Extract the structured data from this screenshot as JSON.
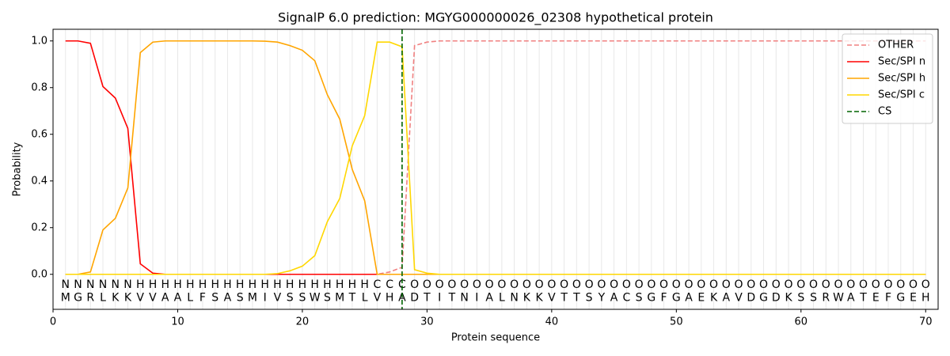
{
  "chart_data": {
    "type": "line",
    "title": "SignalP 6.0 prediction: MGYG000000026_02308 hypothetical protein",
    "xlabel": "Protein sequence",
    "ylabel": "Probability",
    "x": [
      1,
      2,
      3,
      4,
      5,
      6,
      7,
      8,
      9,
      10,
      11,
      12,
      13,
      14,
      15,
      16,
      17,
      18,
      19,
      20,
      21,
      22,
      23,
      24,
      25,
      26,
      27,
      28,
      29,
      30,
      31,
      32,
      33,
      34,
      35,
      36,
      37,
      38,
      39,
      40,
      41,
      42,
      43,
      44,
      45,
      46,
      47,
      48,
      49,
      50,
      51,
      52,
      53,
      54,
      55,
      56,
      57,
      58,
      59,
      60,
      61,
      62,
      63,
      64,
      65,
      66,
      67,
      68,
      69,
      70
    ],
    "sequence": [
      "M",
      "G",
      "R",
      "L",
      "K",
      "K",
      "V",
      "V",
      "A",
      "A",
      "L",
      "F",
      "S",
      "A",
      "S",
      "M",
      "I",
      "V",
      "S",
      "S",
      "W",
      "S",
      "M",
      "T",
      "L",
      "V",
      "H",
      "A",
      "D",
      "T",
      "I",
      "T",
      "N",
      "I",
      "A",
      "L",
      "N",
      "K",
      "K",
      "V",
      "T",
      "T",
      "S",
      "Y",
      "A",
      "C",
      "S",
      "G",
      "F",
      "G",
      "A",
      "E",
      "K",
      "A",
      "V",
      "D",
      "G",
      "D",
      "K",
      "S",
      "S",
      "R",
      "W",
      "A",
      "T",
      "E",
      "F",
      "G",
      "E",
      "H"
    ],
    "labels": [
      "N",
      "N",
      "N",
      "N",
      "N",
      "N",
      "H",
      "H",
      "H",
      "H",
      "H",
      "H",
      "H",
      "H",
      "H",
      "H",
      "H",
      "H",
      "H",
      "H",
      "H",
      "H",
      "H",
      "H",
      "H",
      "C",
      "C",
      "C",
      "O",
      "O",
      "O",
      "O",
      "O",
      "O",
      "O",
      "O",
      "O",
      "O",
      "O",
      "O",
      "O",
      "O",
      "O",
      "O",
      "O",
      "O",
      "O",
      "O",
      "O",
      "O",
      "O",
      "O",
      "O",
      "O",
      "O",
      "O",
      "O",
      "O",
      "O",
      "O",
      "O",
      "O",
      "O",
      "O",
      "O",
      "O",
      "O",
      "O",
      "O",
      "O"
    ],
    "label_colors": {
      "N": "#ff0000",
      "H": "#ffa500",
      "C": "#ffd700",
      "O": "#808080"
    },
    "series": [
      {
        "name": "OTHER",
        "color": "#f08080",
        "linestyle": "dashed",
        "values": [
          0,
          0,
          0,
          0,
          0,
          0,
          0,
          0,
          0,
          0,
          0,
          0,
          0,
          0,
          0,
          0,
          0,
          0,
          0,
          0,
          0,
          0,
          0,
          0,
          0,
          0,
          0.01,
          0.03,
          0.98,
          0.995,
          1,
          1,
          1,
          1,
          1,
          1,
          1,
          1,
          1,
          1,
          1,
          1,
          1,
          1,
          1,
          1,
          1,
          1,
          1,
          1,
          1,
          1,
          1,
          1,
          1,
          1,
          1,
          1,
          1,
          1,
          1,
          1,
          1,
          1,
          1,
          1,
          1,
          1,
          1,
          1
        ]
      },
      {
        "name": "Sec/SPI n",
        "color": "#ff0000",
        "linestyle": "solid",
        "values": [
          1,
          1,
          0.99,
          0.805,
          0.755,
          0.625,
          0.045,
          0.005,
          0,
          0,
          0,
          0,
          0,
          0,
          0,
          0,
          0,
          0,
          0,
          0,
          0,
          0,
          0,
          0,
          0,
          0,
          0,
          0,
          0,
          0,
          0,
          0,
          0,
          0,
          0,
          0,
          0,
          0,
          0,
          0,
          0,
          0,
          0,
          0,
          0,
          0,
          0,
          0,
          0,
          0,
          0,
          0,
          0,
          0,
          0,
          0,
          0,
          0,
          0,
          0,
          0,
          0,
          0,
          0,
          0,
          0,
          0,
          0,
          0,
          0
        ]
      },
      {
        "name": "Sec/SPI h",
        "color": "#ffa500",
        "linestyle": "solid",
        "values": [
          0,
          0,
          0.01,
          0.19,
          0.24,
          0.37,
          0.95,
          0.995,
          1,
          1,
          1,
          1,
          1,
          1,
          1,
          1,
          0.999,
          0.995,
          0.98,
          0.96,
          0.915,
          0.77,
          0.665,
          0.45,
          0.315,
          0,
          0,
          0,
          0,
          0,
          0,
          0,
          0,
          0,
          0,
          0,
          0,
          0,
          0,
          0,
          0,
          0,
          0,
          0,
          0,
          0,
          0,
          0,
          0,
          0,
          0,
          0,
          0,
          0,
          0,
          0,
          0,
          0,
          0,
          0,
          0,
          0,
          0,
          0,
          0,
          0,
          0,
          0,
          0,
          0
        ]
      },
      {
        "name": "Sec/SPI c",
        "color": "#ffd700",
        "linestyle": "solid",
        "values": [
          0,
          0,
          0,
          0,
          0,
          0,
          0,
          0,
          0,
          0,
          0,
          0,
          0,
          0,
          0,
          0,
          0,
          0.003,
          0.015,
          0.035,
          0.08,
          0.225,
          0.325,
          0.55,
          0.68,
          0.995,
          0.995,
          0.975,
          0.02,
          0.005,
          0,
          0,
          0,
          0,
          0,
          0,
          0,
          0,
          0,
          0,
          0,
          0,
          0,
          0,
          0,
          0,
          0,
          0,
          0,
          0,
          0,
          0,
          0,
          0,
          0,
          0,
          0,
          0,
          0,
          0,
          0,
          0,
          0,
          0,
          0,
          0,
          0,
          0,
          0,
          0
        ]
      }
    ],
    "cs": {
      "name": "CS",
      "color": "#006400",
      "linestyle": "dashed",
      "position": 28
    },
    "xlim": [
      0,
      71
    ],
    "xticks": [
      0,
      10,
      20,
      30,
      40,
      50,
      60,
      70
    ],
    "ylim": [
      -0.15,
      1.05
    ],
    "yticks": [
      {
        "value": 0,
        "label": "0.0"
      },
      {
        "value": 0.2,
        "label": "0.2"
      },
      {
        "value": 0.4,
        "label": "0.4"
      },
      {
        "value": 0.6,
        "label": "0.6"
      },
      {
        "value": 0.8,
        "label": "0.8"
      },
      {
        "value": 1,
        "label": "1.0"
      }
    ],
    "legend": "upper right",
    "grid": true
  }
}
